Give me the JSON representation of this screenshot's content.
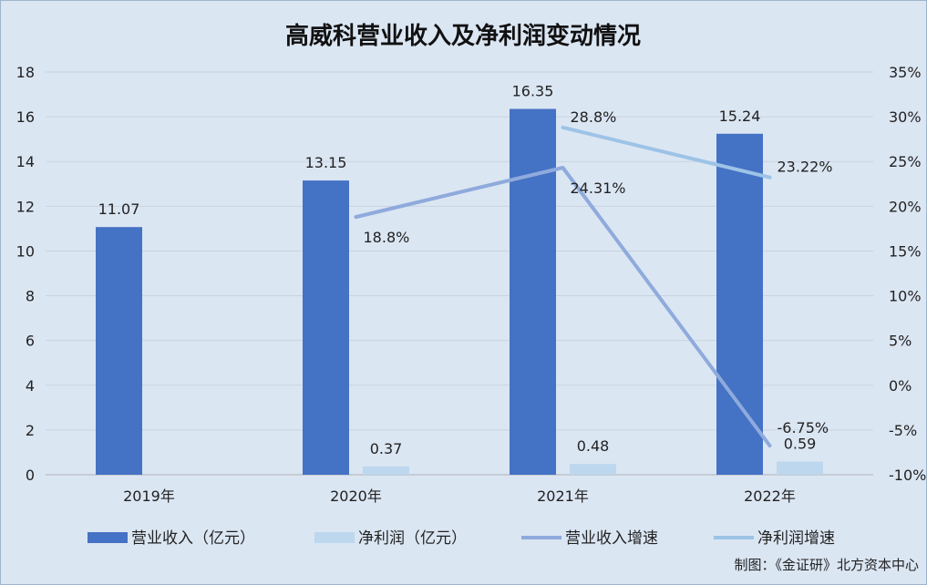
{
  "chart_data": {
    "type": "bar",
    "title": "高威科营业收入及净利润变动情况",
    "categories": [
      "2019年",
      "2020年",
      "2021年",
      "2022年"
    ],
    "ylim": [
      0,
      18
    ],
    "y_ticks": [
      "0",
      "2",
      "4",
      "6",
      "8",
      "10",
      "12",
      "14",
      "16",
      "18"
    ],
    "y2lim": [
      -10,
      35
    ],
    "y2_ticks": [
      "-10%",
      "-5%",
      "0%",
      "5%",
      "10%",
      "15%",
      "20%",
      "25%",
      "30%",
      "35%"
    ],
    "grid": true,
    "legend_position": "bottom",
    "series": [
      {
        "name": "营业收入（亿元）",
        "kind": "bar",
        "axis": "left",
        "color": "#4472c4",
        "values": [
          11.07,
          13.15,
          16.35,
          15.24
        ],
        "labels": [
          "11.07",
          "13.15",
          "16.35",
          "15.24"
        ]
      },
      {
        "name": "净利润（亿元）",
        "kind": "bar",
        "axis": "left",
        "color": "#bdd7ee",
        "values": [
          null,
          0.37,
          0.48,
          0.59
        ],
        "labels": [
          null,
          "0.37",
          "0.48",
          "0.59"
        ]
      },
      {
        "name": "营业收入增速",
        "kind": "line",
        "axis": "right",
        "color": "#8faadc",
        "values": [
          null,
          18.8,
          24.31,
          -6.75
        ],
        "labels": [
          null,
          "18.8%",
          "24.31%",
          "-6.75%"
        ]
      },
      {
        "name": "净利润增速",
        "kind": "line",
        "axis": "right",
        "color": "#9dc3e6",
        "values": [
          null,
          null,
          28.8,
          23.22
        ],
        "labels": [
          null,
          null,
          "28.8%",
          "23.22%"
        ]
      }
    ],
    "source": "制图：《金证研》北方资本中心"
  }
}
